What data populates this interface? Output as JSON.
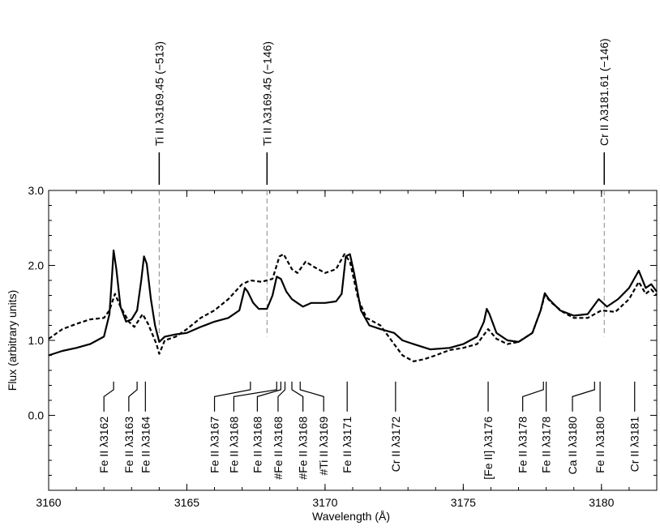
{
  "chart_data": {
    "type": "line",
    "xlabel": "Wavelength (Å)",
    "ylabel": "Flux (arbitrary units)",
    "xlim": [
      3160,
      3182
    ],
    "ylim": [
      -1.0,
      3.0
    ],
    "x_ticks": [
      {
        "value": 3160,
        "label": "3160"
      },
      {
        "value": 3165,
        "label": "3165"
      },
      {
        "value": 3170,
        "label": "3170"
      },
      {
        "value": 3175,
        "label": "3175"
      },
      {
        "value": 3180,
        "label": "3180"
      }
    ],
    "y_ticks": [
      {
        "value": 0.0,
        "label": "0.0"
      },
      {
        "value": 1.0,
        "label": "1.0"
      },
      {
        "value": 2.0,
        "label": "2.0"
      },
      {
        "value": 3.0,
        "label": "3.0"
      }
    ],
    "series": [
      {
        "style": "solid",
        "color": "#000000",
        "points": [
          [
            3160.0,
            0.8
          ],
          [
            3160.5,
            0.86
          ],
          [
            3161.0,
            0.9
          ],
          [
            3161.5,
            0.95
          ],
          [
            3162.0,
            1.05
          ],
          [
            3162.2,
            1.35
          ],
          [
            3162.3,
            1.9
          ],
          [
            3162.35,
            2.2
          ],
          [
            3162.45,
            1.95
          ],
          [
            3162.6,
            1.45
          ],
          [
            3162.8,
            1.25
          ],
          [
            3163.0,
            1.28
          ],
          [
            3163.2,
            1.4
          ],
          [
            3163.35,
            1.8
          ],
          [
            3163.45,
            2.12
          ],
          [
            3163.55,
            2.02
          ],
          [
            3163.7,
            1.55
          ],
          [
            3163.85,
            1.2
          ],
          [
            3164.0,
            0.98
          ],
          [
            3164.2,
            1.05
          ],
          [
            3164.6,
            1.08
          ],
          [
            3165.0,
            1.1
          ],
          [
            3165.5,
            1.18
          ],
          [
            3166.0,
            1.25
          ],
          [
            3166.5,
            1.3
          ],
          [
            3166.9,
            1.4
          ],
          [
            3167.1,
            1.7
          ],
          [
            3167.2,
            1.65
          ],
          [
            3167.4,
            1.5
          ],
          [
            3167.6,
            1.42
          ],
          [
            3167.9,
            1.42
          ],
          [
            3168.1,
            1.6
          ],
          [
            3168.25,
            1.85
          ],
          [
            3168.4,
            1.82
          ],
          [
            3168.6,
            1.65
          ],
          [
            3168.8,
            1.55
          ],
          [
            3169.0,
            1.5
          ],
          [
            3169.2,
            1.45
          ],
          [
            3169.5,
            1.5
          ],
          [
            3170.0,
            1.5
          ],
          [
            3170.4,
            1.52
          ],
          [
            3170.6,
            1.62
          ],
          [
            3170.75,
            2.12
          ],
          [
            3170.9,
            2.15
          ],
          [
            3171.05,
            1.9
          ],
          [
            3171.3,
            1.4
          ],
          [
            3171.6,
            1.2
          ],
          [
            3172.0,
            1.15
          ],
          [
            3172.5,
            1.1
          ],
          [
            3172.8,
            1.0
          ],
          [
            3173.2,
            0.95
          ],
          [
            3173.8,
            0.88
          ],
          [
            3174.5,
            0.9
          ],
          [
            3175.0,
            0.95
          ],
          [
            3175.5,
            1.05
          ],
          [
            3175.75,
            1.25
          ],
          [
            3175.85,
            1.42
          ],
          [
            3175.95,
            1.35
          ],
          [
            3176.2,
            1.1
          ],
          [
            3176.6,
            1.0
          ],
          [
            3177.0,
            0.98
          ],
          [
            3177.5,
            1.1
          ],
          [
            3177.8,
            1.4
          ],
          [
            3177.95,
            1.63
          ],
          [
            3178.1,
            1.55
          ],
          [
            3178.5,
            1.4
          ],
          [
            3179.0,
            1.33
          ],
          [
            3179.5,
            1.35
          ],
          [
            3179.9,
            1.55
          ],
          [
            3180.2,
            1.45
          ],
          [
            3180.6,
            1.55
          ],
          [
            3181.0,
            1.7
          ],
          [
            3181.35,
            1.93
          ],
          [
            3181.6,
            1.7
          ],
          [
            3181.8,
            1.75
          ],
          [
            3182.0,
            1.65
          ]
        ]
      },
      {
        "style": "dashed",
        "color": "#000000",
        "points": [
          [
            3160.0,
            1.02
          ],
          [
            3160.5,
            1.15
          ],
          [
            3161.0,
            1.22
          ],
          [
            3161.5,
            1.28
          ],
          [
            3162.0,
            1.3
          ],
          [
            3162.2,
            1.4
          ],
          [
            3162.4,
            1.62
          ],
          [
            3162.6,
            1.45
          ],
          [
            3162.9,
            1.25
          ],
          [
            3163.1,
            1.18
          ],
          [
            3163.4,
            1.35
          ],
          [
            3163.6,
            1.22
          ],
          [
            3163.9,
            0.95
          ],
          [
            3164.0,
            0.82
          ],
          [
            3164.2,
            1.0
          ],
          [
            3164.6,
            1.05
          ],
          [
            3165.0,
            1.15
          ],
          [
            3165.5,
            1.3
          ],
          [
            3166.0,
            1.4
          ],
          [
            3166.5,
            1.55
          ],
          [
            3167.0,
            1.75
          ],
          [
            3167.3,
            1.8
          ],
          [
            3167.7,
            1.78
          ],
          [
            3168.1,
            1.82
          ],
          [
            3168.35,
            2.12
          ],
          [
            3168.5,
            2.15
          ],
          [
            3168.8,
            1.95
          ],
          [
            3169.0,
            1.9
          ],
          [
            3169.3,
            2.05
          ],
          [
            3169.6,
            1.98
          ],
          [
            3170.0,
            1.9
          ],
          [
            3170.4,
            1.95
          ],
          [
            3170.7,
            2.15
          ],
          [
            3170.9,
            2.05
          ],
          [
            3171.2,
            1.55
          ],
          [
            3171.5,
            1.3
          ],
          [
            3172.0,
            1.2
          ],
          [
            3172.5,
            0.95
          ],
          [
            3172.8,
            0.8
          ],
          [
            3173.2,
            0.72
          ],
          [
            3173.6,
            0.75
          ],
          [
            3174.0,
            0.8
          ],
          [
            3174.5,
            0.87
          ],
          [
            3175.0,
            0.9
          ],
          [
            3175.5,
            0.95
          ],
          [
            3175.9,
            1.15
          ],
          [
            3176.2,
            1.02
          ],
          [
            3176.6,
            0.95
          ],
          [
            3177.0,
            0.98
          ],
          [
            3177.5,
            1.1
          ],
          [
            3177.8,
            1.4
          ],
          [
            3177.95,
            1.6
          ],
          [
            3178.2,
            1.5
          ],
          [
            3178.6,
            1.38
          ],
          [
            3179.0,
            1.3
          ],
          [
            3179.5,
            1.3
          ],
          [
            3180.0,
            1.4
          ],
          [
            3180.5,
            1.38
          ],
          [
            3181.0,
            1.55
          ],
          [
            3181.35,
            1.78
          ],
          [
            3181.6,
            1.62
          ],
          [
            3181.8,
            1.68
          ],
          [
            3182.0,
            1.6
          ]
        ]
      }
    ],
    "top_markers": [
      {
        "wavelength": 3164.0,
        "label": "Ti II λ3169.45 (−513)"
      },
      {
        "wavelength": 3167.9,
        "label": "Ti II λ3169.45 (−146)"
      },
      {
        "wavelength": 3180.1,
        "label": "Cr II λ3181.61 (−146)"
      }
    ],
    "line_ids": [
      {
        "label": "Fe II λ3162",
        "wavelength": 3162.35,
        "label_x": 3162.0
      },
      {
        "label": "Fe II λ3163",
        "wavelength": 3163.2,
        "label_x": 3162.9
      },
      {
        "label": "Fe II λ3164",
        "wavelength": 3163.5,
        "label_x": 3163.5
      },
      {
        "label": "Fe II λ3167",
        "wavelength": 3167.3,
        "label_x": 3166.0
      },
      {
        "label": "Fe II λ3168",
        "wavelength": 3168.25,
        "label_x": 3166.7
      },
      {
        "label": "Fe II λ3168",
        "wavelength": 3168.4,
        "label_x": 3167.55
      },
      {
        "label": "#Fe II λ3168",
        "wavelength": 3168.55,
        "label_x": 3168.3
      },
      {
        "label": "#Fe II λ3168",
        "wavelength": 3168.8,
        "label_x": 3169.2
      },
      {
        "label": "#Ti II λ3169",
        "wavelength": 3169.1,
        "label_x": 3169.95
      },
      {
        "label": "Fe II λ3171",
        "wavelength": 3170.8,
        "label_x": 3170.8
      },
      {
        "label": "Cr II λ3172",
        "wavelength": 3172.55,
        "label_x": 3172.55
      },
      {
        "label": "[Fe II] λ3176",
        "wavelength": 3175.9,
        "label_x": 3175.9
      },
      {
        "label": "Fe II λ3178",
        "wavelength": 3177.9,
        "label_x": 3177.15
      },
      {
        "label": "Fe II λ3178",
        "wavelength": 3178.0,
        "label_x": 3178.0
      },
      {
        "label": "Ca II λ3180",
        "wavelength": 3179.75,
        "label_x": 3178.95
      },
      {
        "label": "Fe II λ3180",
        "wavelength": 3179.95,
        "label_x": 3179.95
      },
      {
        "label": "Cr II λ3181",
        "wavelength": 3181.2,
        "label_x": 3181.2
      }
    ]
  }
}
